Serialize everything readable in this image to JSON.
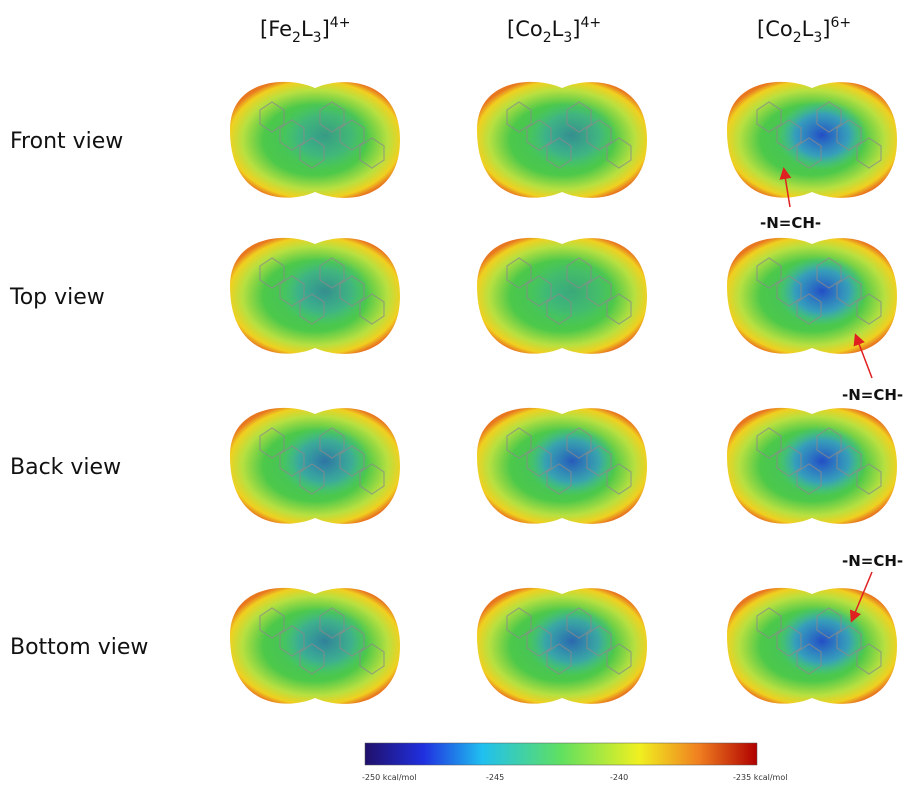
{
  "columns": [
    {
      "parts": [
        "[Fe",
        "2",
        "L",
        "3",
        "]",
        "4+"
      ]
    },
    {
      "parts": [
        "[Co",
        "2",
        "L",
        "3",
        "]",
        "4+"
      ]
    },
    {
      "parts": [
        "[Co",
        "2",
        "L",
        "3",
        "]",
        "6+"
      ]
    }
  ],
  "rows": [
    "Front view",
    "Top view",
    "Back view",
    "Bottom view"
  ],
  "annotations": [
    "-N=CH-",
    "-N=CH-",
    "-N=CH-"
  ],
  "colorbar": {
    "labels": [
      "-250 kcal/mol",
      "-245",
      "-240",
      "-235 kcal/mol"
    ]
  }
}
